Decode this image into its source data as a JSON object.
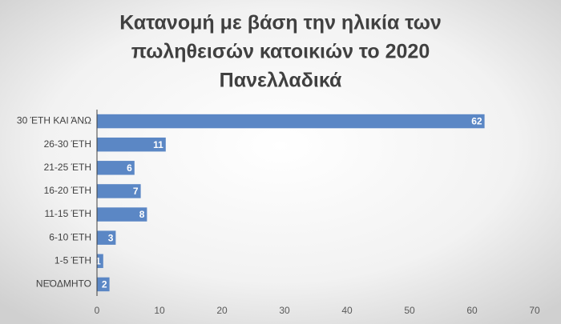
{
  "chart_data": {
    "type": "hbar",
    "title": [
      "Κατανομή με βάση την ηλικία των",
      "πωληθεισών κατοικιών το 2020",
      "Πανελλαδικά"
    ],
    "categories": [
      "30 ΈΤΗ ΚΑΙ ΆΝΩ",
      "26-30 ΈΤΗ",
      "21-25 ΈΤΗ",
      "16-20 ΈΤΗ",
      "11-15 ΈΤΗ",
      "6-10 ΈΤΗ",
      "1-5 ΈΤΗ",
      "ΝΕΌΔΜΗΤΟ"
    ],
    "values": [
      62,
      11,
      6,
      7,
      8,
      3,
      1,
      2
    ],
    "color": "#5b87c5",
    "xlim": [
      0,
      70
    ],
    "xticks": [
      0,
      10,
      20,
      30,
      40,
      50,
      60,
      70
    ],
    "grid": false
  }
}
